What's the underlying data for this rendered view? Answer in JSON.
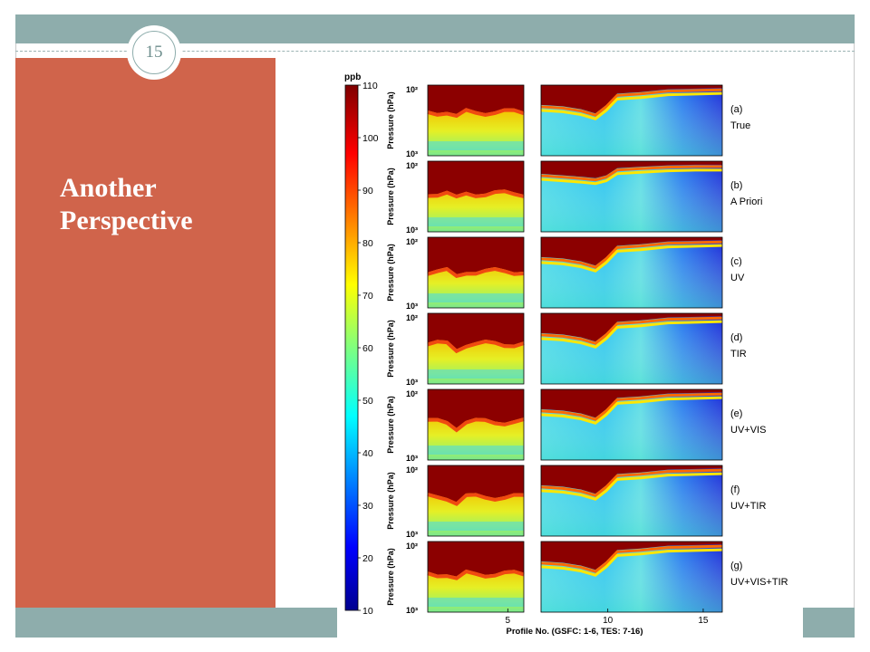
{
  "slide": {
    "number": "15",
    "title_lines": [
      "Another",
      "Perspective"
    ]
  },
  "colors": {
    "top_bar": "#8eadac",
    "side_panel": "#d0644b",
    "badge_ring": "#8eadac"
  },
  "chart_data": {
    "type": "heatmap",
    "colorbar": {
      "unit_label": "ppb",
      "range": [
        10,
        110
      ],
      "ticks": [
        110,
        100,
        90,
        80,
        70,
        60,
        50,
        40,
        30,
        20,
        10
      ],
      "colormap": "jet"
    },
    "ylabel": "Pressure (hPa)",
    "y_ticks": [
      "10²",
      "10³"
    ],
    "ylim_hPa": [
      1000,
      100
    ],
    "xlabel": "Profile No. (GSFC: 1-6, TES: 7-16)",
    "x_ticks": [
      5,
      10,
      15
    ],
    "xlim": [
      0,
      16
    ],
    "gap_between_profiles": [
      6,
      7
    ],
    "panels": [
      {
        "tag": "(a)",
        "label": "True"
      },
      {
        "tag": "(b)",
        "label": "A Priori"
      },
      {
        "tag": "(c)",
        "label": "UV"
      },
      {
        "tag": "(d)",
        "label": "TIR"
      },
      {
        "tag": "(e)",
        "label": "UV+VIS"
      },
      {
        "tag": "(f)",
        "label": "UV+TIR"
      },
      {
        "tag": "(g)",
        "label": "UV+VIS+TIR"
      }
    ]
  }
}
